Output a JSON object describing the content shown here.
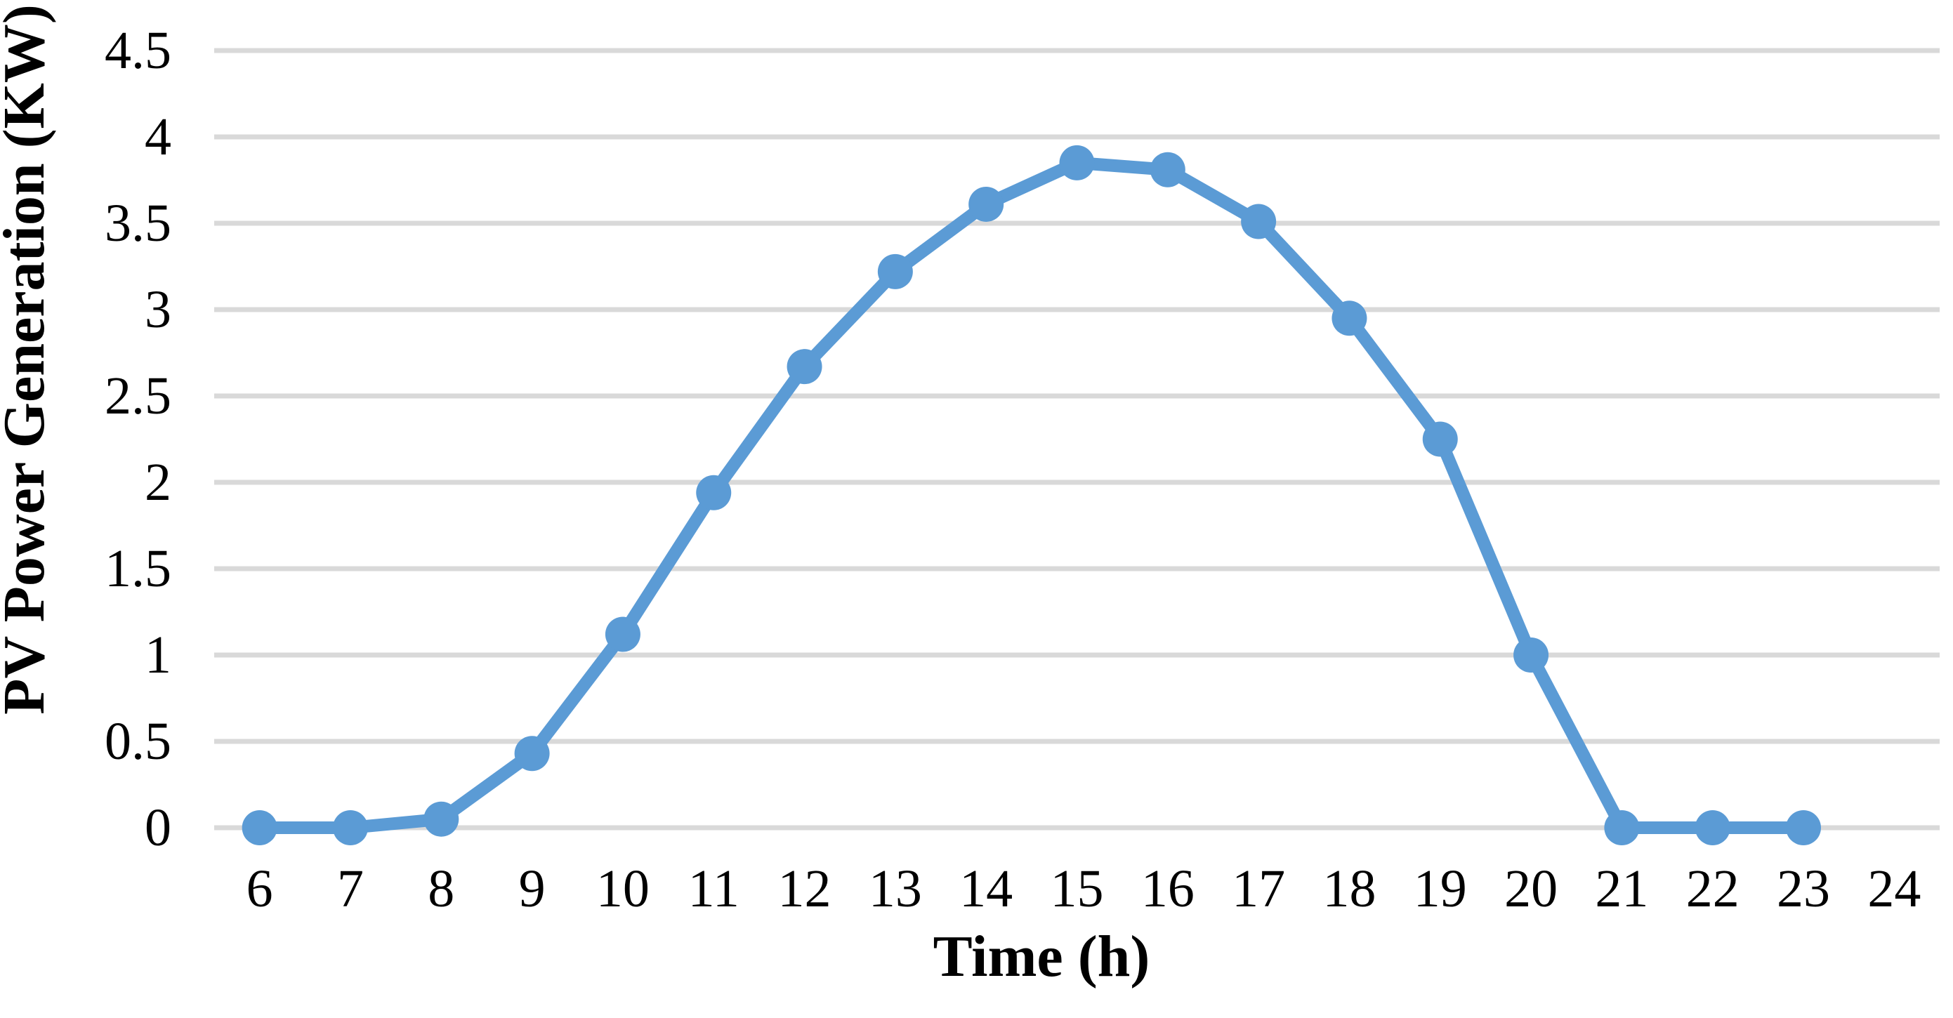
{
  "chart_data": {
    "type": "line",
    "title": "",
    "xlabel": "Time (h)",
    "ylabel": "PV Power Generation (KW)",
    "x_categories": [
      "6",
      "7",
      "8",
      "9",
      "10",
      "11",
      "12",
      "13",
      "14",
      "15",
      "16",
      "17",
      "18",
      "19",
      "20",
      "21",
      "22",
      "23",
      "24"
    ],
    "series": [
      {
        "name": "PV Power Generation",
        "x": [
          6,
          7,
          8,
          9,
          10,
          11,
          12,
          13,
          14,
          15,
          16,
          17,
          18,
          19,
          20,
          21,
          22,
          23
        ],
        "values": [
          0,
          0,
          0.05,
          0.43,
          1.12,
          1.94,
          2.67,
          3.22,
          3.61,
          3.85,
          3.81,
          3.51,
          2.95,
          2.25,
          1.0,
          0,
          0,
          0
        ],
        "color": "#5B9BD5",
        "marker": "circle"
      }
    ],
    "ylim": [
      0,
      4.5
    ],
    "ytick_step": 0.5,
    "ytick_labels": [
      "0",
      "0.5",
      "1",
      "1.5",
      "2",
      "2.5",
      "3",
      "3.5",
      "4",
      "4.5"
    ],
    "grid": "horizontal",
    "gridline_color": "#D9D9D9",
    "background_color": "#FFFFFF",
    "text_color": "#000000",
    "legend": "none"
  }
}
